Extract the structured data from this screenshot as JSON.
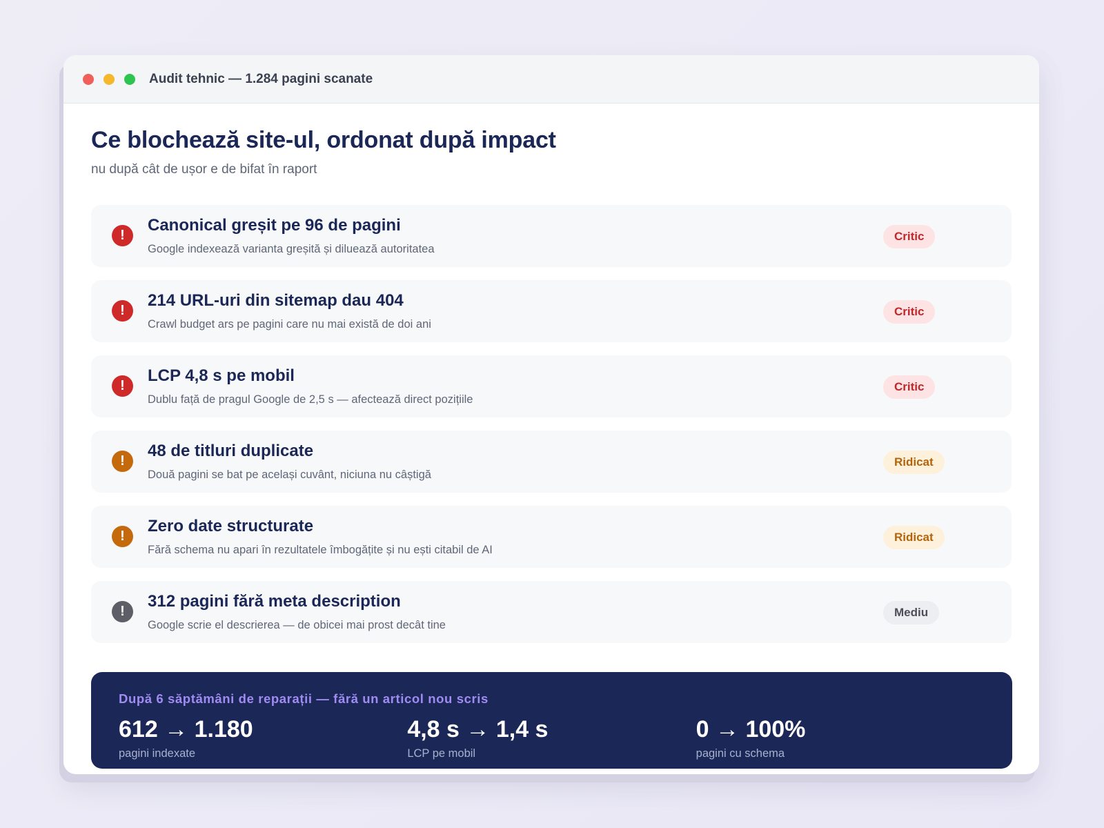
{
  "window": {
    "title": "Audit tehnic — 1.284 pagini scanate"
  },
  "header": {
    "title": "Ce blochează site-ul, ordonat după impact",
    "subtitle": "nu după cât de ușor e de bifat în raport"
  },
  "issues": [
    {
      "title": "Canonical greșit pe 96 de pagini",
      "desc": "Google indexează varianta greșită și diluează autoritatea",
      "severity": "Critic",
      "level": "critic",
      "icon": "exclamation-icon"
    },
    {
      "title": "214 URL-uri din sitemap dau 404",
      "desc": "Crawl budget ars pe pagini care nu mai există de doi ani",
      "severity": "Critic",
      "level": "critic",
      "icon": "exclamation-icon"
    },
    {
      "title": "LCP 4,8 s pe mobil",
      "desc": "Dublu față de pragul Google de 2,5 s — afectează direct pozițiile",
      "severity": "Critic",
      "level": "critic",
      "icon": "exclamation-icon"
    },
    {
      "title": "48 de titluri duplicate",
      "desc": "Două pagini se bat pe același cuvânt, niciuna nu câștigă",
      "severity": "Ridicat",
      "level": "ridicat",
      "icon": "exclamation-icon"
    },
    {
      "title": "Zero date structurate",
      "desc": "Fără schema nu apari în rezultatele îmbogățite și nu ești citabil de AI",
      "severity": "Ridicat",
      "level": "ridicat",
      "icon": "exclamation-icon"
    },
    {
      "title": "312 pagini fără meta description",
      "desc": "Google scrie el descrierea — de obicei mai prost decât tine",
      "severity": "Mediu",
      "level": "mediu",
      "icon": "exclamation-icon"
    }
  ],
  "results": {
    "label": "După 6 săptămâni de reparații — fără un articol nou scris",
    "stats": [
      {
        "value": "612 → 1.180",
        "label": "pagini indexate"
      },
      {
        "value": "4,8 s → 1,4 s",
        "label": "LCP pe mobil"
      },
      {
        "value": "0 → 100%",
        "label": "pagini cu schema"
      }
    ]
  },
  "colors": {
    "critic": "#cf2a2a",
    "ridicat": "#c5690d",
    "mediu": "#5c6066",
    "navy": "#1b2757",
    "accent": "#a08bf2"
  },
  "exclamation_glyph": "!"
}
